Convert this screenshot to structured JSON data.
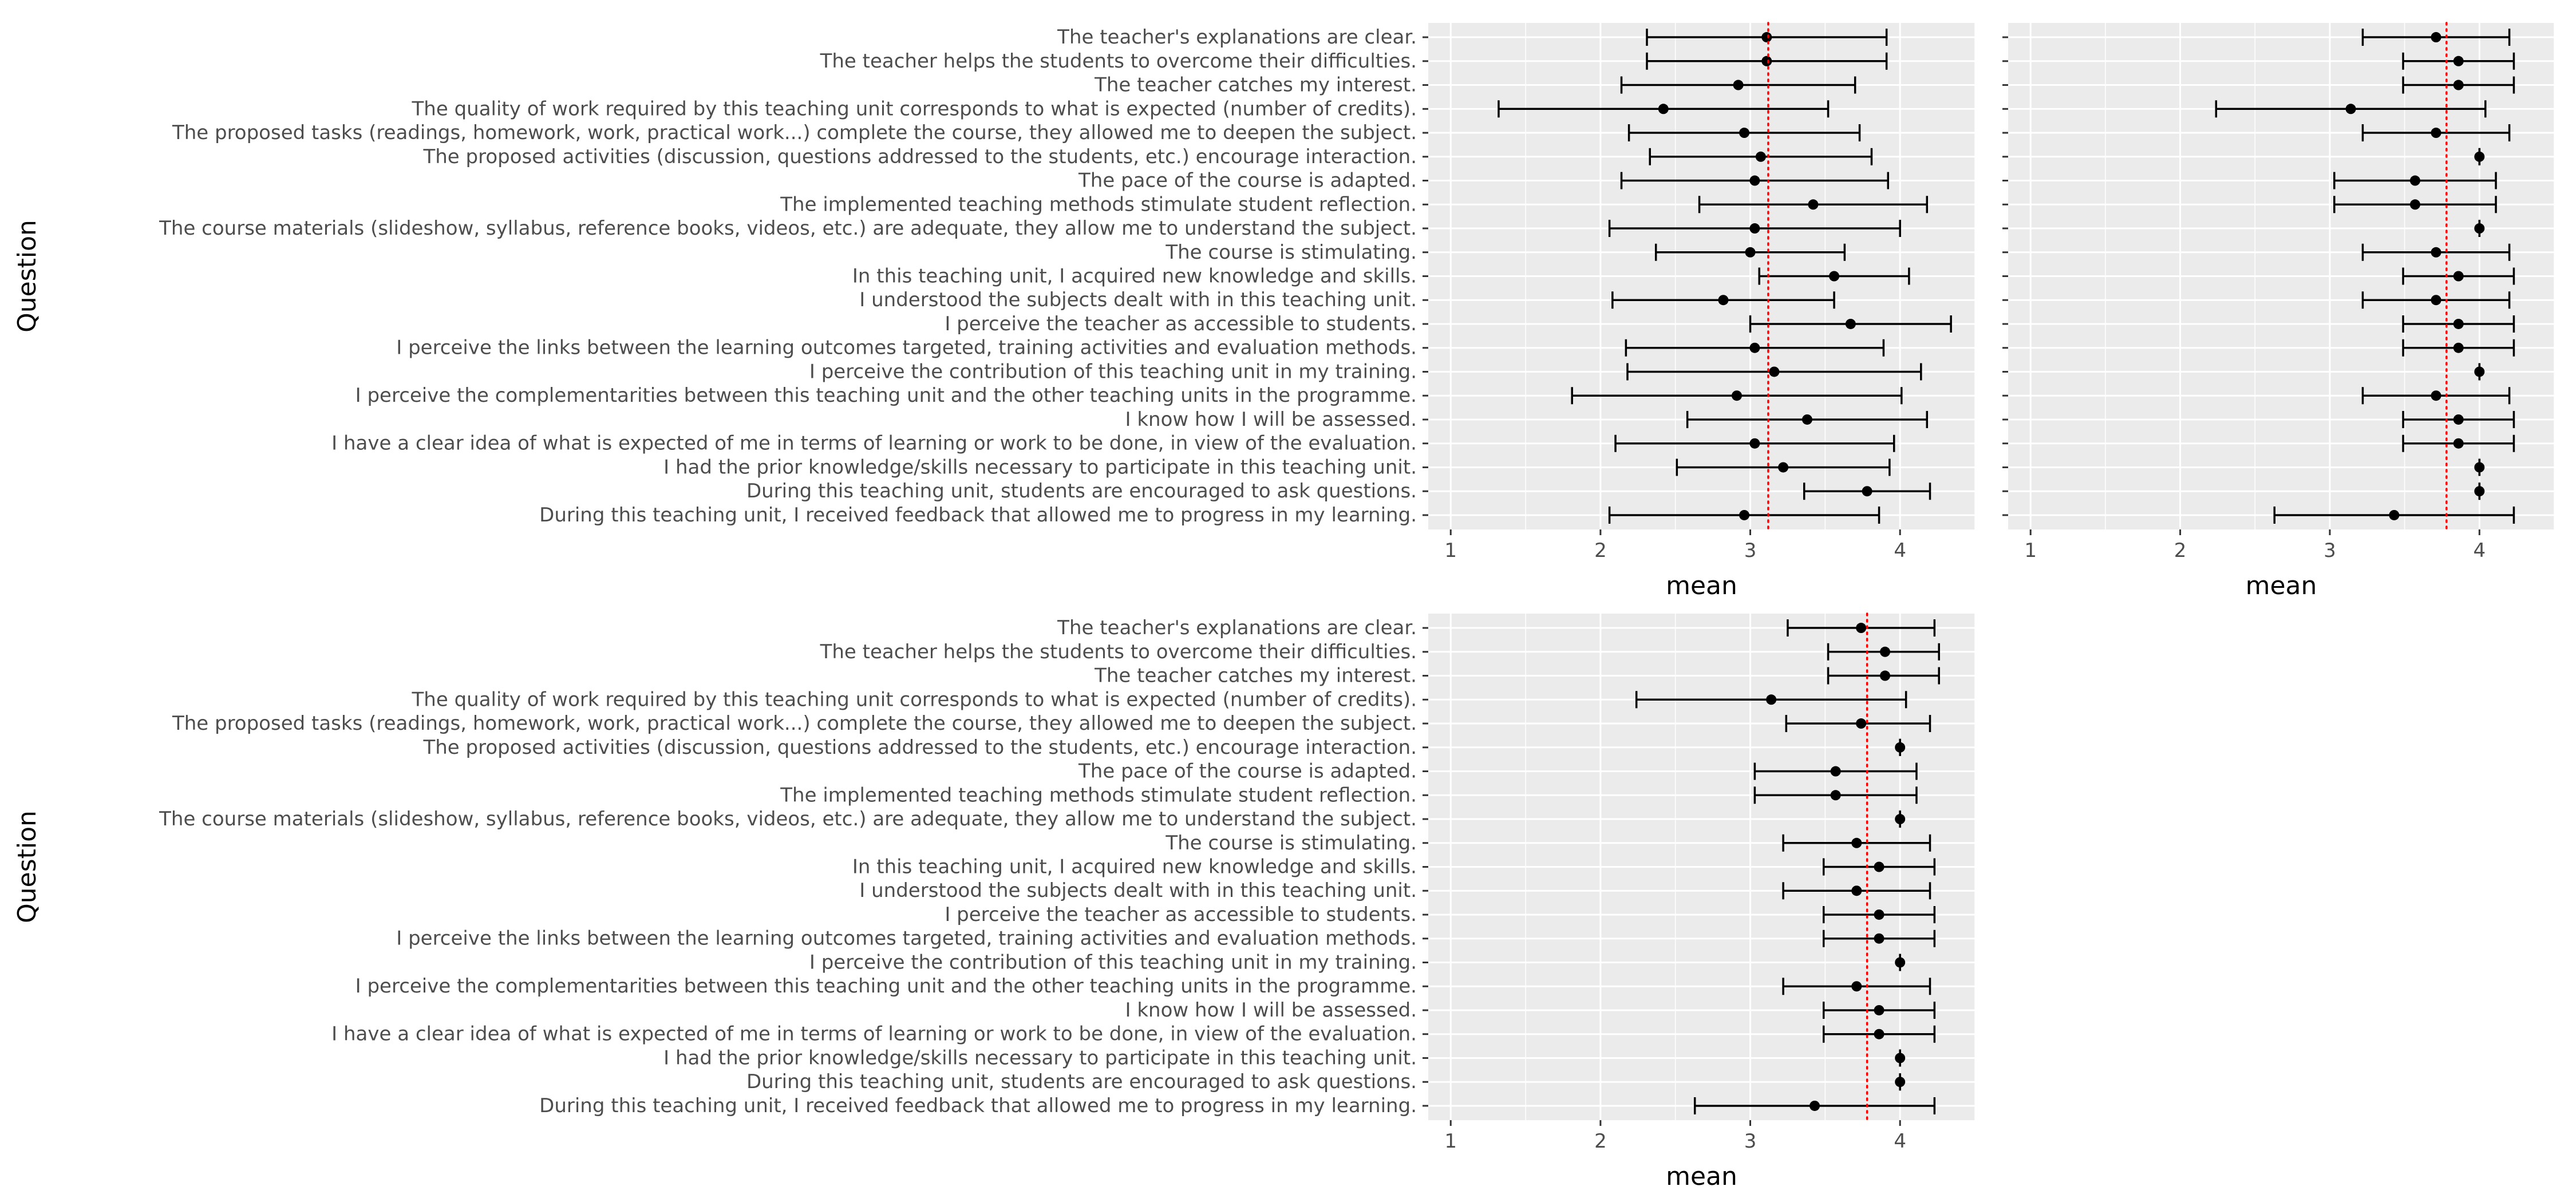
{
  "chart_data": [
    {
      "type": "scatter",
      "panel": "top-left",
      "xlabel": "mean",
      "ylabel": "Question",
      "xlim": [
        0.85,
        4.5
      ],
      "xticks": [
        1,
        2,
        3,
        4
      ],
      "grid": true,
      "reference_line": {
        "value": 3.12,
        "color": "#ff0000",
        "style": "dotted"
      },
      "show_category_labels": true,
      "categories": [
        "The teacher's explanations are clear.",
        "The teacher helps the students to overcome their difficulties.",
        "The teacher catches my interest.",
        "The quality of work required by this teaching unit corresponds to what is expected (number of credits).",
        "The proposed tasks (readings, homework, work, practical work...) complete the course, they allowed me to deepen the subject.",
        "The proposed activities (discussion, questions addressed to the students, etc.) encourage interaction.",
        "The pace of the course is adapted.",
        "The implemented teaching methods stimulate student reflection.",
        "The course materials (slideshow, syllabus, reference books, videos, etc.) are adequate, they allow me to understand the subject.",
        "The course is stimulating.",
        "In this teaching unit, I acquired new knowledge and skills.",
        "I understood the subjects dealt with in this teaching unit.",
        "I perceive the teacher as accessible to students.",
        "I perceive the links between the learning outcomes targeted, training activities and evaluation methods.",
        "I perceive the contribution of this teaching unit in my training.",
        "I perceive the complementarities between this teaching unit and the other teaching units in the programme.",
        "I know how I will be assessed.",
        "I have a clear idea of what is expected of me in terms of learning or work to be done, in view of the evaluation.",
        "I had the prior knowledge/skills necessary to participate in this teaching unit.",
        "During this teaching unit, students are encouraged to ask questions.",
        "During this teaching unit, I received feedback that allowed me to progress in my learning."
      ],
      "mean": [
        3.11,
        3.11,
        2.92,
        2.42,
        2.96,
        3.07,
        3.03,
        3.42,
        3.03,
        3.0,
        3.56,
        2.82,
        3.67,
        3.03,
        3.16,
        2.91,
        3.38,
        3.03,
        3.22,
        3.78,
        2.96
      ],
      "lower": [
        2.31,
        2.31,
        2.14,
        1.32,
        2.19,
        2.33,
        2.14,
        2.66,
        2.06,
        2.37,
        3.06,
        2.08,
        3.0,
        2.17,
        2.18,
        1.81,
        2.58,
        2.1,
        2.51,
        3.36,
        2.06
      ],
      "upper": [
        3.91,
        3.91,
        3.7,
        3.52,
        3.73,
        3.81,
        3.92,
        4.18,
        4.0,
        3.63,
        4.06,
        3.56,
        4.34,
        3.89,
        4.14,
        4.01,
        4.18,
        3.96,
        3.93,
        4.2,
        3.86
      ]
    },
    {
      "type": "scatter",
      "panel": "top-right",
      "xlabel": "mean",
      "ylabel": "",
      "xlim": [
        0.85,
        4.5
      ],
      "xticks": [
        1,
        2,
        3,
        4
      ],
      "grid": true,
      "reference_line": {
        "value": 3.78,
        "color": "#ff0000",
        "style": "dotted"
      },
      "show_category_labels": false,
      "categories": [
        "The teacher's explanations are clear.",
        "The teacher helps the students to overcome their difficulties.",
        "The teacher catches my interest.",
        "The quality of work required by this teaching unit corresponds to what is expected (number of credits).",
        "The proposed tasks (readings, homework, work, practical work...) complete the course, they allowed me to deepen the subject.",
        "The proposed activities (discussion, questions addressed to the students, etc.) encourage interaction.",
        "The pace of the course is adapted.",
        "The implemented teaching methods stimulate student reflection.",
        "The course materials (slideshow, syllabus, reference books, videos, etc.) are adequate, they allow me to understand the subject.",
        "The course is stimulating.",
        "In this teaching unit, I acquired new knowledge and skills.",
        "I understood the subjects dealt with in this teaching unit.",
        "I perceive the teacher as accessible to students.",
        "I perceive the links between the learning outcomes targeted, training activities and evaluation methods.",
        "I perceive the contribution of this teaching unit in my training.",
        "I perceive the complementarities between this teaching unit and the other teaching units in the programme.",
        "I know how I will be assessed.",
        "I have a clear idea of what is expected of me in terms of learning or work to be done, in view of the evaluation.",
        "I had the prior knowledge/skills necessary to participate in this teaching unit.",
        "During this teaching unit, students are encouraged to ask questions.",
        "During this teaching unit, I received feedback that allowed me to progress in my learning."
      ],
      "mean": [
        3.71,
        3.86,
        3.86,
        3.14,
        3.71,
        4.0,
        3.57,
        3.57,
        4.0,
        3.71,
        3.86,
        3.71,
        3.86,
        3.86,
        4.0,
        3.71,
        3.86,
        3.86,
        4.0,
        4.0,
        3.43
      ],
      "lower": [
        3.22,
        3.49,
        3.49,
        2.24,
        3.22,
        4.0,
        3.03,
        3.03,
        4.0,
        3.22,
        3.49,
        3.22,
        3.49,
        3.49,
        4.0,
        3.22,
        3.49,
        3.49,
        4.0,
        4.0,
        2.63
      ],
      "upper": [
        4.2,
        4.23,
        4.23,
        4.04,
        4.2,
        4.0,
        4.11,
        4.11,
        4.0,
        4.2,
        4.23,
        4.2,
        4.23,
        4.23,
        4.0,
        4.2,
        4.23,
        4.23,
        4.0,
        4.0,
        4.23
      ]
    },
    {
      "type": "scatter",
      "panel": "bottom-left",
      "xlabel": "mean",
      "ylabel": "Question",
      "xlim": [
        0.85,
        4.5
      ],
      "xticks": [
        1,
        2,
        3,
        4
      ],
      "grid": true,
      "reference_line": {
        "value": 3.78,
        "color": "#ff0000",
        "style": "dotted"
      },
      "show_category_labels": true,
      "categories": [
        "The teacher's explanations are clear.",
        "The teacher helps the students to overcome their difficulties.",
        "The teacher catches my interest.",
        "The quality of work required by this teaching unit corresponds to what is expected (number of credits).",
        "The proposed tasks (readings, homework, work, practical work...) complete the course, they allowed me to deepen the subject.",
        "The proposed activities (discussion, questions addressed to the students, etc.) encourage interaction.",
        "The pace of the course is adapted.",
        "The implemented teaching methods stimulate student reflection.",
        "The course materials (slideshow, syllabus, reference books, videos, etc.) are adequate, they allow me to understand the subject.",
        "The course is stimulating.",
        "In this teaching unit, I acquired new knowledge and skills.",
        "I understood the subjects dealt with in this teaching unit.",
        "I perceive the teacher as accessible to students.",
        "I perceive the links between the learning outcomes targeted, training activities and evaluation methods.",
        "I perceive the contribution of this teaching unit in my training.",
        "I perceive the complementarities between this teaching unit and the other teaching units in the programme.",
        "I know how I will be assessed.",
        "I have a clear idea of what is expected of me in terms of learning or work to be done, in view of the evaluation.",
        "I had the prior knowledge/skills necessary to participate in this teaching unit.",
        "During this teaching unit, students are encouraged to ask questions.",
        "During this teaching unit, I received feedback that allowed me to progress in my learning."
      ],
      "mean": [
        3.74,
        3.9,
        3.9,
        3.14,
        3.74,
        4.0,
        3.57,
        3.57,
        4.0,
        3.71,
        3.86,
        3.71,
        3.86,
        3.86,
        4.0,
        3.71,
        3.86,
        3.86,
        4.0,
        4.0,
        3.43
      ],
      "lower": [
        3.25,
        3.52,
        3.52,
        2.24,
        3.24,
        4.0,
        3.03,
        3.03,
        4.0,
        3.22,
        3.49,
        3.22,
        3.49,
        3.49,
        4.0,
        3.22,
        3.49,
        3.49,
        4.0,
        4.0,
        2.63
      ],
      "upper": [
        4.23,
        4.26,
        4.26,
        4.04,
        4.2,
        4.0,
        4.11,
        4.11,
        4.0,
        4.2,
        4.23,
        4.2,
        4.23,
        4.23,
        4.0,
        4.2,
        4.23,
        4.23,
        4.0,
        4.0,
        4.23
      ]
    }
  ],
  "colors": {
    "panel_background": "#ebebeb",
    "grid": "#ffffff",
    "marks": "#000000",
    "reference_line": "#ff0000",
    "tick_text": "#4d4d4d",
    "axis_title": "#000000"
  }
}
